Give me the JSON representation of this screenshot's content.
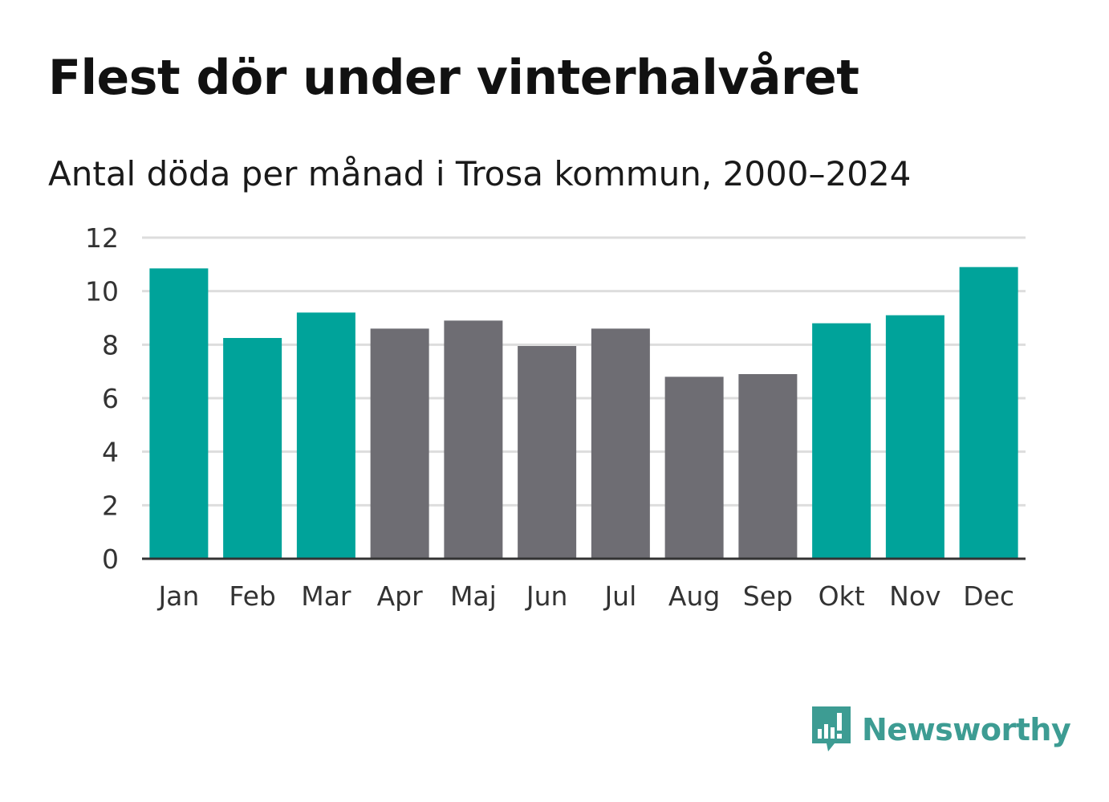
{
  "chart_data": {
    "type": "bar",
    "title": "Flest dör under vinterhalvåret",
    "subtitle": "Antal döda per månad i Trosa kommun, 2000–2024",
    "categories": [
      "Jan",
      "Feb",
      "Mar",
      "Apr",
      "Maj",
      "Jun",
      "Jul",
      "Aug",
      "Sep",
      "Okt",
      "Nov",
      "Dec"
    ],
    "values": [
      10.85,
      8.25,
      9.2,
      8.6,
      8.9,
      7.95,
      8.6,
      6.8,
      6.9,
      8.8,
      9.1,
      10.9
    ],
    "highlight": [
      true,
      true,
      true,
      false,
      false,
      false,
      false,
      false,
      false,
      true,
      true,
      true
    ],
    "colors": {
      "highlight": "#00a39a",
      "normal": "#6e6d73",
      "grid": "#dddddd",
      "axis": "#333333"
    },
    "yticks": [
      "0",
      "2",
      "4",
      "6",
      "8",
      "10",
      "12"
    ],
    "ylim": [
      0,
      12
    ],
    "xlabel": "",
    "ylabel": "",
    "grid": true
  },
  "branding": {
    "name": "Newsworthy",
    "icon": "newsworthy-logo-icon",
    "color": "#3d9c93"
  }
}
